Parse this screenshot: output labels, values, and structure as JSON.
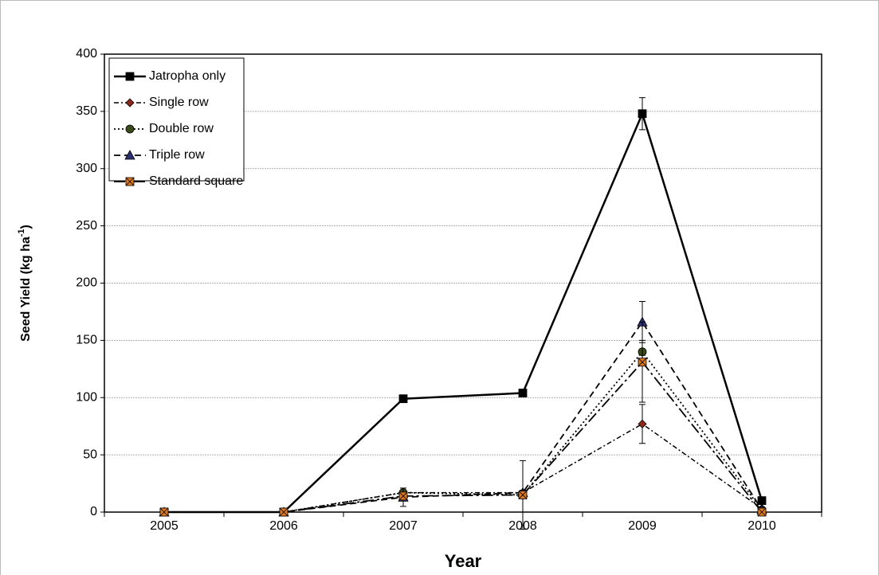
{
  "chart_data": {
    "type": "line",
    "categories": [
      "2005",
      "2006",
      "2007",
      "2008",
      "2009",
      "2010"
    ],
    "xlabel": "Year",
    "ylabel": {
      "text": "Seed Yield  (kg ha",
      "sup": "-1",
      "end": ")"
    },
    "ylim": [
      0,
      400
    ],
    "yticks": [
      0,
      50,
      100,
      150,
      200,
      250,
      300,
      350,
      400
    ],
    "grid": true,
    "legend": "upper-left",
    "series": [
      {
        "name": "Jatropha only",
        "color": "#000000",
        "marker": "square",
        "values": [
          0,
          0,
          99,
          104,
          348,
          10
        ],
        "errors": [
          0,
          0,
          3,
          3,
          14,
          1
        ]
      },
      {
        "name": "Single row",
        "color": "#8b2a1a",
        "marker": "diamond",
        "values": [
          0,
          0,
          17,
          17,
          77,
          3
        ],
        "errors": [
          0,
          0,
          2,
          2,
          17,
          1
        ]
      },
      {
        "name": "Double row",
        "color": "#3a4a1a",
        "marker": "circle",
        "values": [
          0,
          0,
          17,
          15,
          140,
          2
        ],
        "errors": [
          0,
          0,
          2,
          2,
          10,
          1
        ]
      },
      {
        "name": "Triple row",
        "color": "#2a3070",
        "marker": "triangle",
        "values": [
          0,
          0,
          13,
          17,
          166,
          2
        ],
        "errors": [
          0,
          0,
          8,
          2,
          18,
          1
        ]
      },
      {
        "name": "Standard square",
        "color": "#e07a20",
        "marker": "xsquare",
        "values": [
          0,
          0,
          14,
          15,
          131,
          0
        ],
        "errors": [
          0,
          0,
          2,
          30,
          35,
          1
        ]
      }
    ]
  }
}
